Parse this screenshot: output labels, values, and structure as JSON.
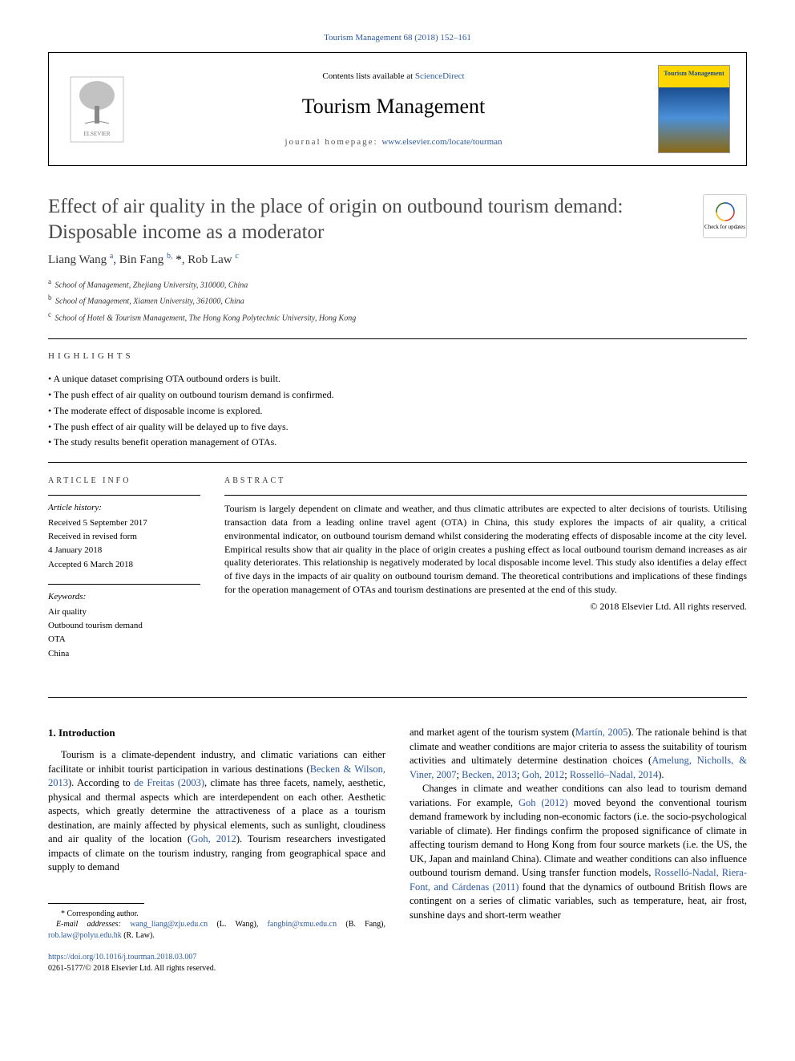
{
  "header": {
    "citation_link": "Tourism Management 68 (2018) 152–161",
    "contents_prefix": "Contents lists available at ",
    "contents_link": "ScienceDirect",
    "journal_name": "Tourism Management",
    "homepage_prefix": "journal homepage: ",
    "homepage_link": "www.elsevier.com/locate/tourman",
    "cover_title": "Tourism Management"
  },
  "article": {
    "title": "Effect of air quality in the place of origin on outbound tourism demand: Disposable income as a moderator",
    "check_updates": "Check for updates",
    "authors_html": "Liang Wang <sup>a</sup>, Bin Fang <sup>b,</sup> <span class='ast'>*</span>, Rob Law <sup>c</sup>",
    "affiliations": [
      {
        "sup": "a",
        "text": "School of Management, Zhejiang University, 310000, China"
      },
      {
        "sup": "b",
        "text": "School of Management, Xiamen University, 361000, China"
      },
      {
        "sup": "c",
        "text": "School of Hotel & Tourism Management, The Hong Kong Polytechnic University, Hong Kong"
      }
    ]
  },
  "highlights": {
    "label": "HIGHLIGHTS",
    "items": [
      "A unique dataset comprising OTA outbound orders is built.",
      "The push effect of air quality on outbound tourism demand is confirmed.",
      "The moderate effect of disposable income is explored.",
      "The push effect of air quality will be delayed up to five days.",
      "The study results benefit operation management of OTAs."
    ]
  },
  "article_info": {
    "heading": "ARTICLE INFO",
    "history_label": "Article history:",
    "history": [
      "Received 5 September 2017",
      "Received in revised form",
      "4 January 2018",
      "Accepted 6 March 2018"
    ],
    "keywords_label": "Keywords:",
    "keywords": [
      "Air quality",
      "Outbound tourism demand",
      "OTA",
      "China"
    ]
  },
  "abstract": {
    "heading": "ABSTRACT",
    "text": "Tourism is largely dependent on climate and weather, and thus climatic attributes are expected to alter decisions of tourists. Utilising transaction data from a leading online travel agent (OTA) in China, this study explores the impacts of air quality, a critical environmental indicator, on outbound tourism demand whilst considering the moderating effects of disposable income at the city level. Empirical results show that air quality in the place of origin creates a pushing effect as local outbound tourism demand increases as air quality deteriorates. This relationship is negatively moderated by local disposable income level. This study also identifies a delay effect of five days in the impacts of air quality on outbound tourism demand. The theoretical contributions and implications of these findings for the operation management of OTAs and tourism destinations are presented at the end of this study.",
    "copyright": "© 2018 Elsevier Ltd. All rights reserved."
  },
  "intro": {
    "heading": "1. Introduction",
    "para1_pre": "Tourism is a climate-dependent industry, and climatic variations can either facilitate or inhibit tourist participation in various destinations (",
    "para1_ref1": "Becken & Wilson, 2013",
    "para1_mid1": "). According to ",
    "para1_ref2": "de Freitas (2003)",
    "para1_mid2": ", climate has three facets, namely, aesthetic, physical and thermal aspects which are interdependent on each other. Aesthetic aspects, which greatly determine the attractiveness of a place as a tourism destination, are mainly affected by physical elements, such as sunlight, cloudiness and air quality of the location (",
    "para1_ref3": "Goh, 2012",
    "para1_end": "). Tourism researchers investigated impacts of climate on the tourism industry, ranging from geographical space and supply to demand",
    "para2_pre": "and market agent of the tourism system (",
    "para2_ref1": "Martín, 2005",
    "para2_mid1": "). The rationale behind is that climate and weather conditions are major criteria to assess the suitability of tourism activities and ultimately determine destination choices (",
    "para2_ref2": "Amelung, Nicholls, & Viner, 2007",
    "para2_sep1": "; ",
    "para2_ref3": "Becken, 2013",
    "para2_sep2": "; ",
    "para2_ref4": "Goh, 2012",
    "para2_sep3": "; ",
    "para2_ref5": "Rosselló–Nadal, 2014",
    "para2_end": ").",
    "para3_pre": "Changes in climate and weather conditions can also lead to tourism demand variations. For example, ",
    "para3_ref1": "Goh (2012)",
    "para3_mid1": " moved beyond the conventional tourism demand framework by including non-economic factors (i.e. the socio-psychological variable of climate). Her findings confirm the proposed significance of climate in affecting tourism demand to Hong Kong from four source markets (i.e. the US, the UK, Japan and mainland China). Climate and weather conditions can also influence outbound tourism demand. Using transfer function models, ",
    "para3_ref2": "Rosselló-Nadal, Riera-Font, and Cárdenas (2011)",
    "para3_end": " found that the dynamics of outbound British flows are contingent on a series of climatic variables, such as temperature, heat, air frost, sunshine days and short-term weather"
  },
  "footnotes": {
    "corresponding": "* Corresponding author.",
    "email_label": "E-mail addresses:",
    "emails": [
      {
        "addr": "wang_liang@zju.edu.cn",
        "name": "(L. Wang)"
      },
      {
        "addr": "fangbin@xmu.edu.cn",
        "name": "(B. Fang)"
      },
      {
        "addr": "rob.law@polyu.edu.hk",
        "name": "(R. Law)"
      }
    ]
  },
  "footer": {
    "doi": "https://doi.org/10.1016/j.tourman.2018.03.007",
    "issn": "0261-5177/© 2018 Elsevier Ltd. All rights reserved."
  },
  "colors": {
    "link": "#2c5aa0",
    "text": "#000000",
    "title_gray": "#4a4a4a"
  }
}
